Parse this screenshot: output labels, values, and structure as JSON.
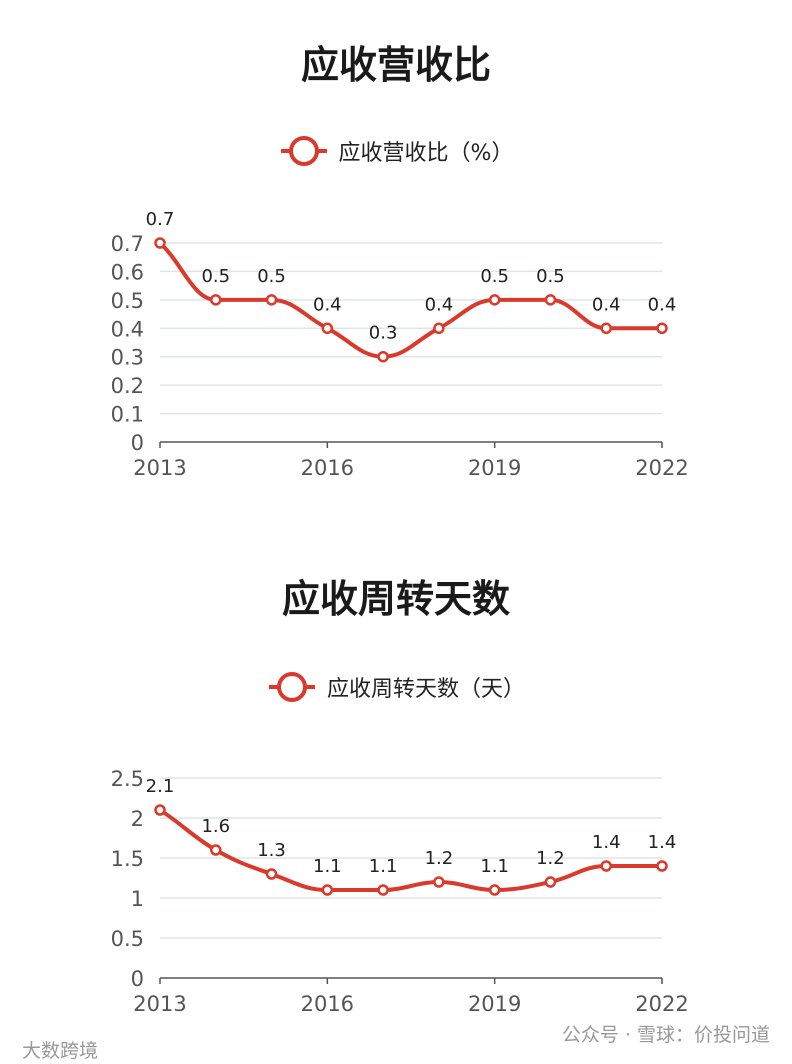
{
  "chart_data": [
    {
      "type": "line",
      "title": "应收营收比",
      "x": [
        "2013",
        "2014",
        "2015",
        "2016",
        "2017",
        "2018",
        "2019",
        "2020",
        "2021",
        "2022"
      ],
      "x_tick_labels": [
        "2013",
        "2016",
        "2019",
        "2022"
      ],
      "series": [
        {
          "name": "应收营收比（%）",
          "values": [
            0.7,
            0.5,
            0.5,
            0.4,
            0.3,
            0.4,
            0.5,
            0.5,
            0.4,
            0.4
          ],
          "color": "#d93a2b"
        }
      ],
      "y_ticks": [
        "0",
        "0.1",
        "0.2",
        "0.3",
        "0.4",
        "0.5",
        "0.6",
        "0.7"
      ],
      "ylim": [
        0,
        0.7
      ],
      "grid": true,
      "legend": "top-center"
    },
    {
      "type": "line",
      "title": "应收周转天数",
      "x": [
        "2013",
        "2014",
        "2015",
        "2016",
        "2017",
        "2018",
        "2019",
        "2020",
        "2021",
        "2022"
      ],
      "x_tick_labels": [
        "2013",
        "2016",
        "2019",
        "2022"
      ],
      "series": [
        {
          "name": "应收周转天数（天）",
          "values": [
            2.1,
            1.6,
            1.3,
            1.1,
            1.1,
            1.2,
            1.1,
            1.2,
            1.4,
            1.4
          ],
          "color": "#d93a2b"
        }
      ],
      "y_ticks": [
        "0",
        "0.5",
        "1",
        "1.5",
        "2",
        "2.5"
      ],
      "ylim": [
        0,
        2.5
      ],
      "grid": true,
      "legend": "top-center"
    }
  ],
  "watermarks": {
    "left": "大数跨境",
    "right": "公众号 · 雪球：价投问道"
  }
}
